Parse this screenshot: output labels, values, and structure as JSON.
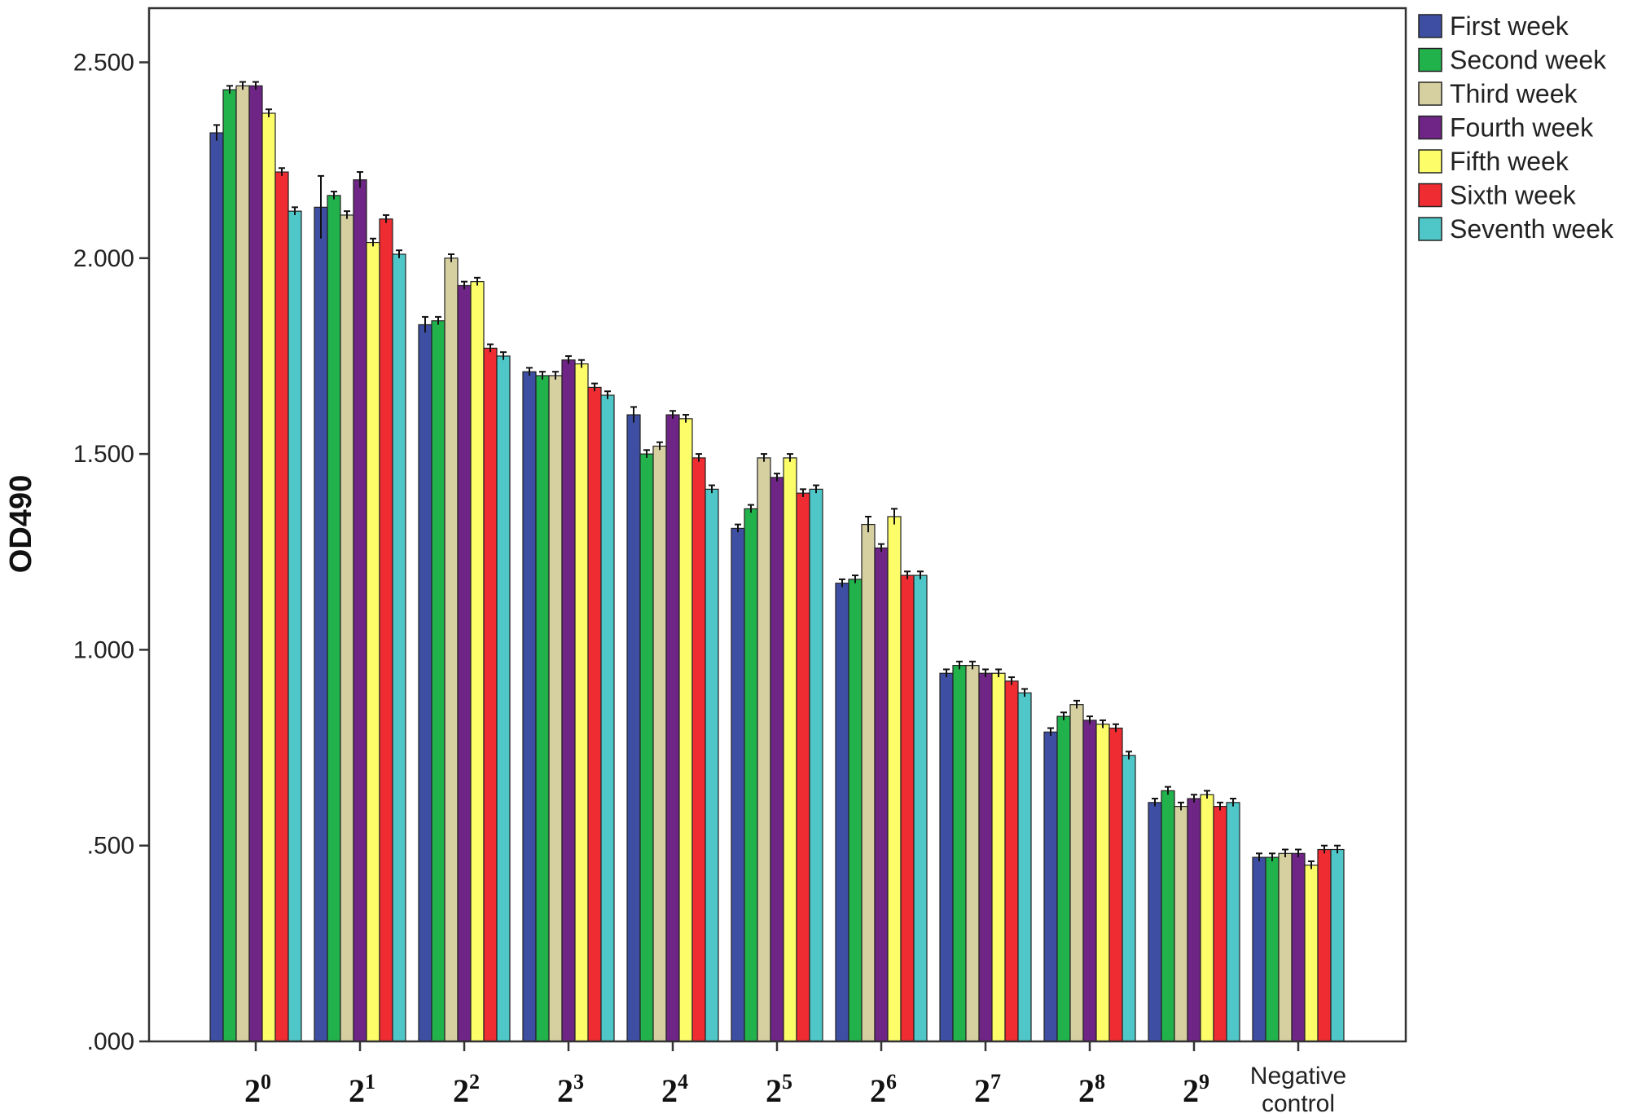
{
  "chart_data": {
    "type": "bar",
    "title": "",
    "xlabel": "",
    "ylabel": "OD490",
    "ylim": [
      0,
      2.6
    ],
    "yticks": [
      ".000",
      ".500",
      "1.000",
      "1.500",
      "2.000",
      "2.500"
    ],
    "ytick_values": [
      0,
      0.5,
      1.0,
      1.5,
      2.0,
      2.5
    ],
    "grid": false,
    "legend_position": "right",
    "error_bars": true,
    "categories": [
      {
        "base": "2",
        "exp": "0"
      },
      {
        "base": "2",
        "exp": "1"
      },
      {
        "base": "2",
        "exp": "2"
      },
      {
        "base": "2",
        "exp": "3"
      },
      {
        "base": "2",
        "exp": "4"
      },
      {
        "base": "2",
        "exp": "5"
      },
      {
        "base": "2",
        "exp": "6"
      },
      {
        "base": "2",
        "exp": "7"
      },
      {
        "base": "2",
        "exp": "8"
      },
      {
        "base": "2",
        "exp": "9"
      },
      {
        "lines": [
          "Negative",
          "control"
        ]
      }
    ],
    "series": [
      {
        "name": "First week",
        "color": "#3e4fa3",
        "values": [
          2.32,
          2.13,
          1.83,
          1.71,
          1.6,
          1.31,
          1.17,
          0.94,
          0.79,
          0.61,
          0.47
        ],
        "errors": [
          0.02,
          0.08,
          0.02,
          0.01,
          0.02,
          0.01,
          0.01,
          0.01,
          0.01,
          0.01,
          0.01
        ]
      },
      {
        "name": "Second week",
        "color": "#22b24c",
        "values": [
          2.43,
          2.16,
          1.84,
          1.7,
          1.5,
          1.36,
          1.18,
          0.96,
          0.83,
          0.64,
          0.47
        ],
        "errors": [
          0.01,
          0.01,
          0.01,
          0.01,
          0.01,
          0.01,
          0.01,
          0.01,
          0.01,
          0.01,
          0.01
        ]
      },
      {
        "name": "Third week",
        "color": "#d6d0a0",
        "values": [
          2.44,
          2.11,
          2.0,
          1.7,
          1.52,
          1.49,
          1.32,
          0.96,
          0.86,
          0.6,
          0.48
        ],
        "errors": [
          0.01,
          0.01,
          0.01,
          0.01,
          0.01,
          0.01,
          0.02,
          0.01,
          0.01,
          0.01,
          0.01
        ]
      },
      {
        "name": "Fourth week",
        "color": "#6e2585",
        "values": [
          2.44,
          2.2,
          1.93,
          1.74,
          1.6,
          1.44,
          1.26,
          0.94,
          0.82,
          0.62,
          0.48
        ],
        "errors": [
          0.01,
          0.02,
          0.01,
          0.01,
          0.01,
          0.01,
          0.01,
          0.01,
          0.01,
          0.01,
          0.01
        ]
      },
      {
        "name": "Fifth week",
        "color": "#fdfd6a",
        "values": [
          2.37,
          2.04,
          1.94,
          1.73,
          1.59,
          1.49,
          1.34,
          0.94,
          0.81,
          0.63,
          0.45
        ],
        "errors": [
          0.01,
          0.01,
          0.01,
          0.01,
          0.01,
          0.01,
          0.02,
          0.01,
          0.01,
          0.01,
          0.01
        ]
      },
      {
        "name": "Sixth week",
        "color": "#ee2c32",
        "values": [
          2.22,
          2.1,
          1.77,
          1.67,
          1.49,
          1.4,
          1.19,
          0.92,
          0.8,
          0.6,
          0.49
        ],
        "errors": [
          0.01,
          0.01,
          0.01,
          0.01,
          0.01,
          0.01,
          0.01,
          0.01,
          0.01,
          0.01,
          0.01
        ]
      },
      {
        "name": "Seventh week",
        "color": "#4fc6c7",
        "values": [
          2.12,
          2.01,
          1.75,
          1.65,
          1.41,
          1.41,
          1.19,
          0.89,
          0.73,
          0.61,
          0.49
        ],
        "errors": [
          0.01,
          0.01,
          0.01,
          0.01,
          0.01,
          0.01,
          0.01,
          0.01,
          0.01,
          0.01,
          0.01
        ]
      }
    ]
  }
}
